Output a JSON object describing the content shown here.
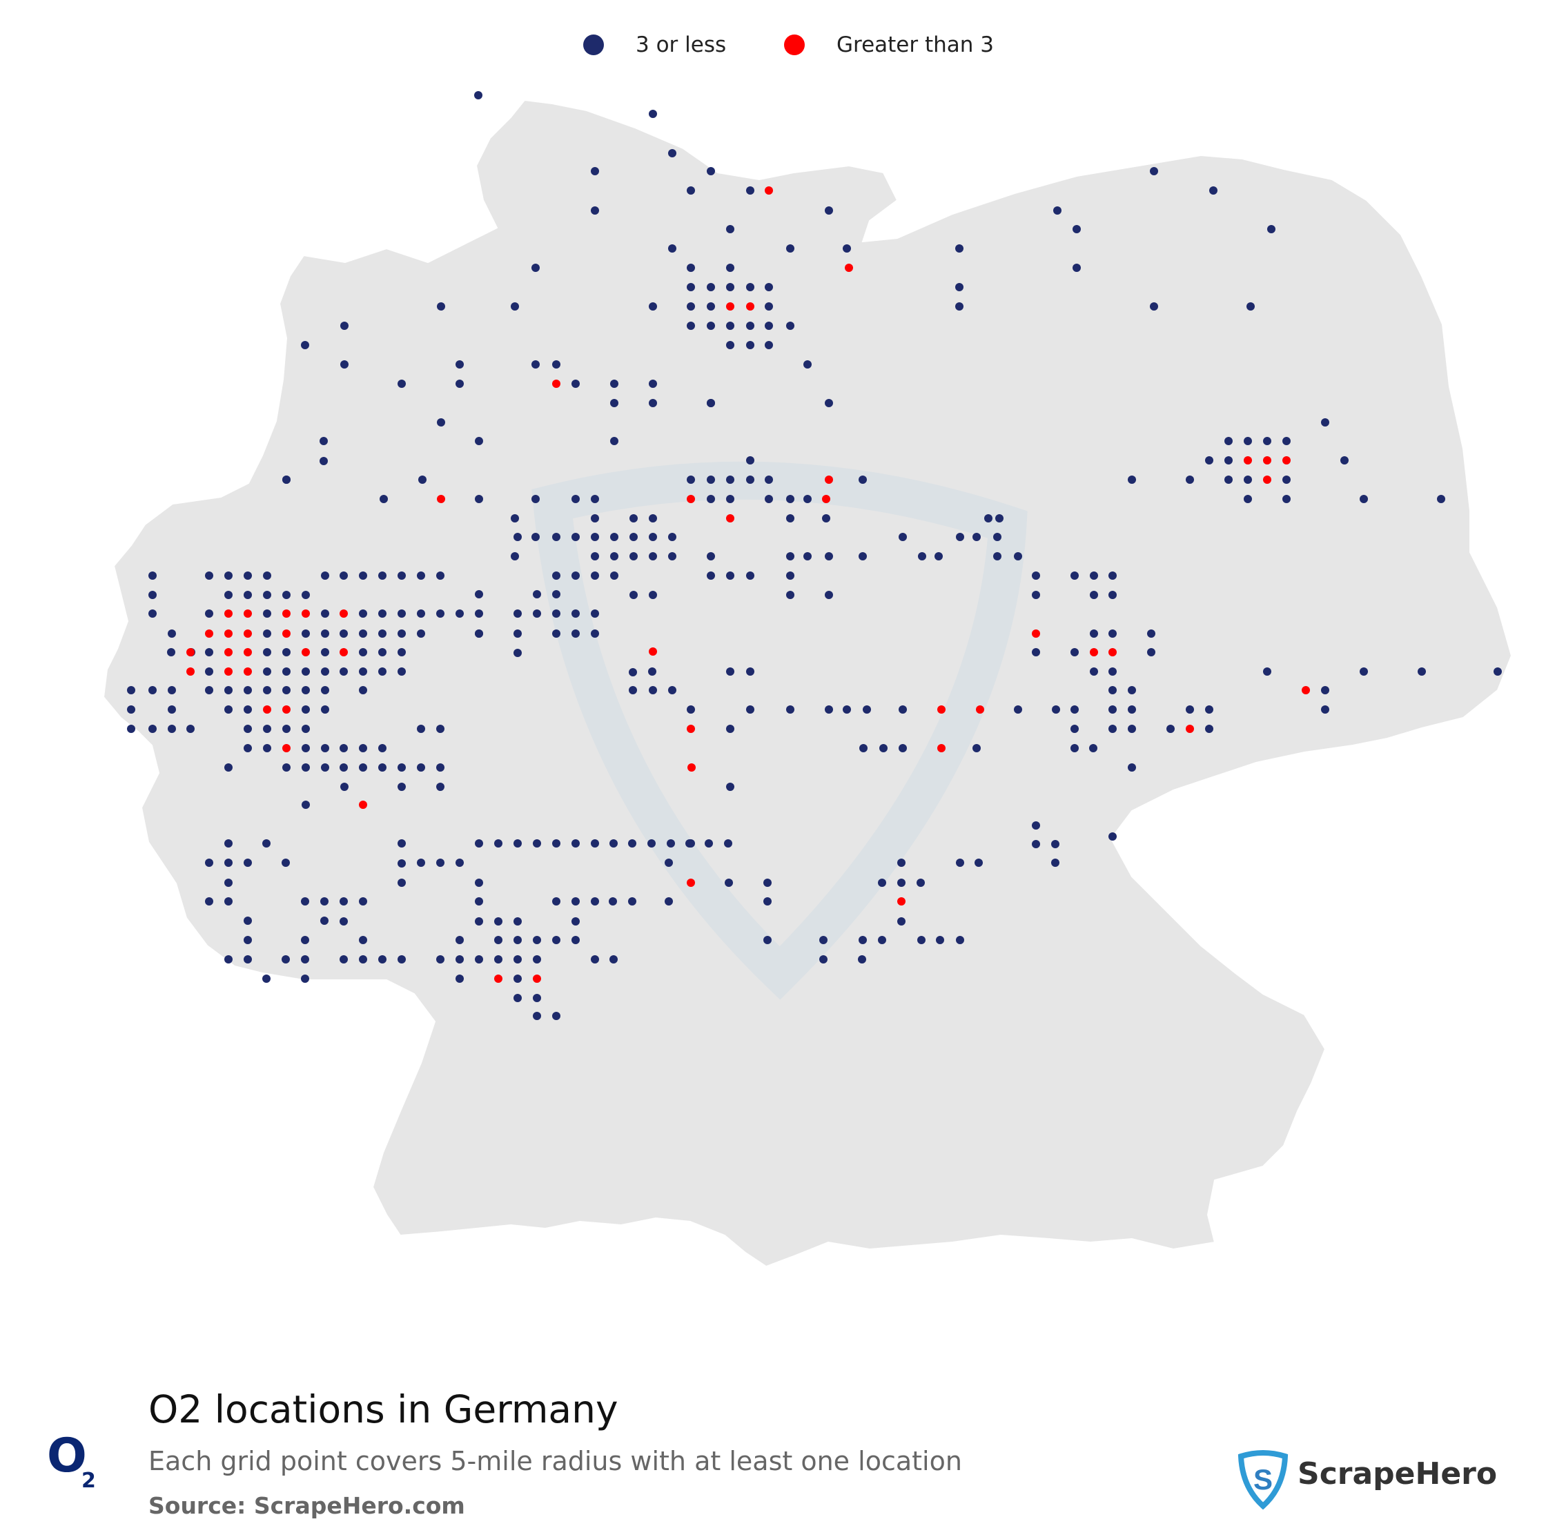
{
  "legend": [
    {
      "label": "3 or less",
      "color": "#1e2a6b"
    },
    {
      "label": "Greater than 3",
      "color": "#ff0000"
    }
  ],
  "map": {
    "country": "Germany",
    "land_color": "#e6e6e6"
  },
  "title": "O2 locations in Germany",
  "subtitle": "Each grid point covers 5-mile radius with at least one location",
  "source": "Source: ScrapeHero.com",
  "logo": {
    "letter": "O",
    "subscript": "2"
  },
  "brand": {
    "name": "ScrapeHero",
    "color": "#2f7fc1"
  },
  "colors": {
    "low": "#1e2a6b",
    "high": "#ff0000"
  }
}
